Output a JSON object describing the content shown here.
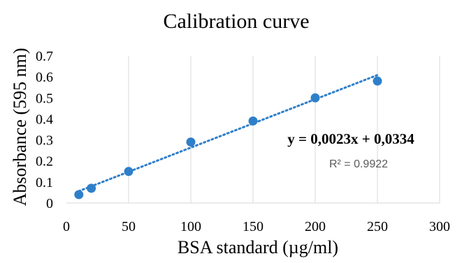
{
  "chart_data": {
    "type": "scatter",
    "title": "Calibration curve",
    "xlabel": "BSA standard (µg/ml)",
    "ylabel": "Absorbance (595 nm)",
    "xlim": [
      0,
      300
    ],
    "ylim": [
      0,
      0.7
    ],
    "x_ticks": [
      "0",
      "50",
      "100",
      "150",
      "200",
      "250",
      "300"
    ],
    "y_ticks": [
      "0",
      "0.1",
      "0.2",
      "0.3",
      "0.4",
      "0.5",
      "0.6",
      "0.7"
    ],
    "grid": "vertical",
    "legend": "none",
    "series": [
      {
        "x": [
          10,
          20,
          50,
          100,
          150,
          200,
          250
        ],
        "y": [
          0.04,
          0.07,
          0.15,
          0.29,
          0.39,
          0.5,
          0.58
        ],
        "color": "#2E7FC9"
      }
    ],
    "trendline": {
      "type": "linear",
      "slope": 0.0023,
      "intercept": 0.0334,
      "x_range": [
        10,
        250
      ],
      "style": "dotted",
      "color": "#2E7FC9",
      "equation_label": "y = 0,0023x + 0,0334",
      "r2_label": "R² = 0.9922"
    }
  }
}
